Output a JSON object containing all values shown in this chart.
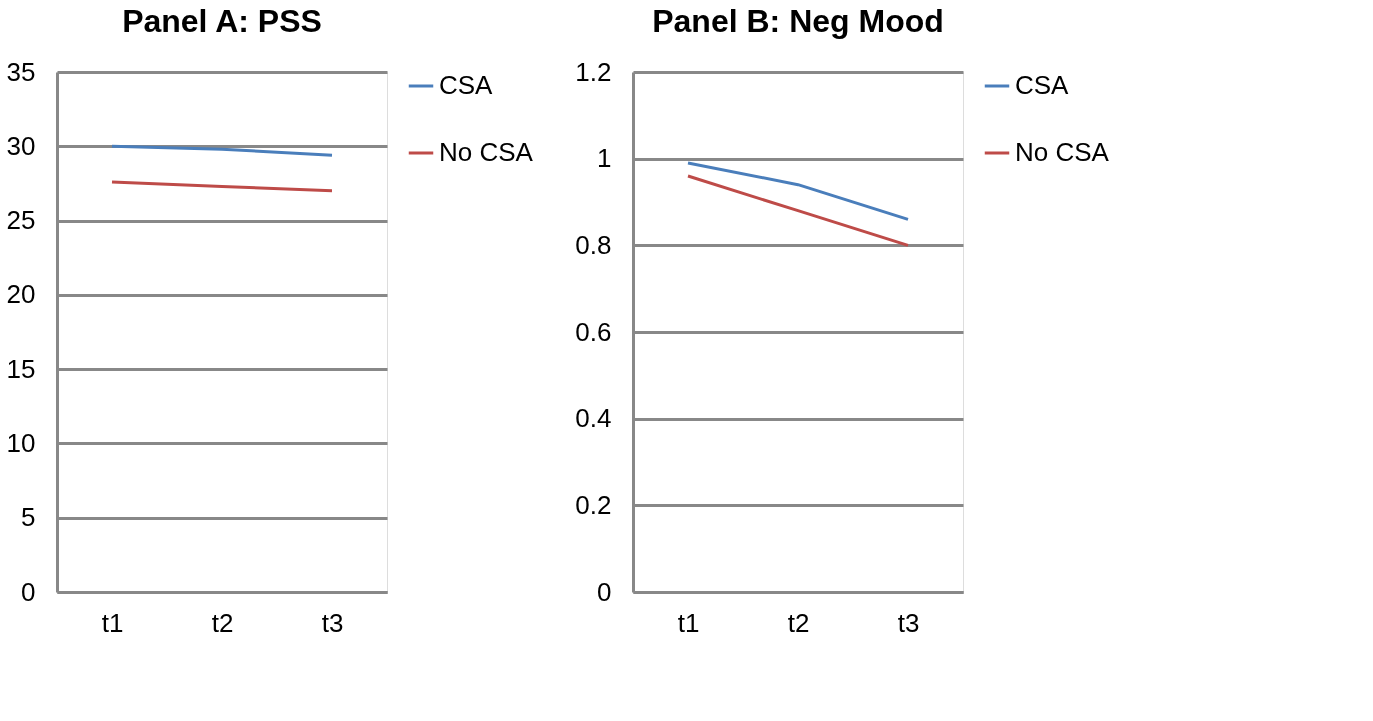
{
  "chart_data": [
    {
      "type": "line",
      "title": "Panel A: PSS",
      "categories": [
        "t1",
        "t2",
        "t3"
      ],
      "series": [
        {
          "name": "CSA",
          "color": "#4a7ebb",
          "values": [
            30.0,
            29.8,
            29.4
          ]
        },
        {
          "name": "No CSA",
          "color": "#be4b48",
          "values": [
            27.6,
            27.3,
            27.0
          ]
        }
      ],
      "ylim": [
        0,
        35
      ],
      "yticks": [
        0,
        5,
        10,
        15,
        20,
        25,
        30,
        35
      ],
      "grid": "y",
      "legend": "right",
      "marker": "none",
      "line_style": "solid"
    },
    {
      "type": "line",
      "title": "Panel B: Neg Mood",
      "categories": [
        "t1",
        "t2",
        "t3"
      ],
      "series": [
        {
          "name": "CSA",
          "color": "#4a7ebb",
          "values": [
            0.99,
            0.94,
            0.86
          ]
        },
        {
          "name": "No CSA",
          "color": "#be4b48",
          "values": [
            0.96,
            0.88,
            0.8
          ]
        }
      ],
      "ylim": [
        0,
        1.2
      ],
      "yticks": [
        0,
        0.2,
        0.4,
        0.6,
        0.8,
        1,
        1.2
      ],
      "grid": "y",
      "legend": "right",
      "marker": "none",
      "line_style": "solid"
    }
  ]
}
